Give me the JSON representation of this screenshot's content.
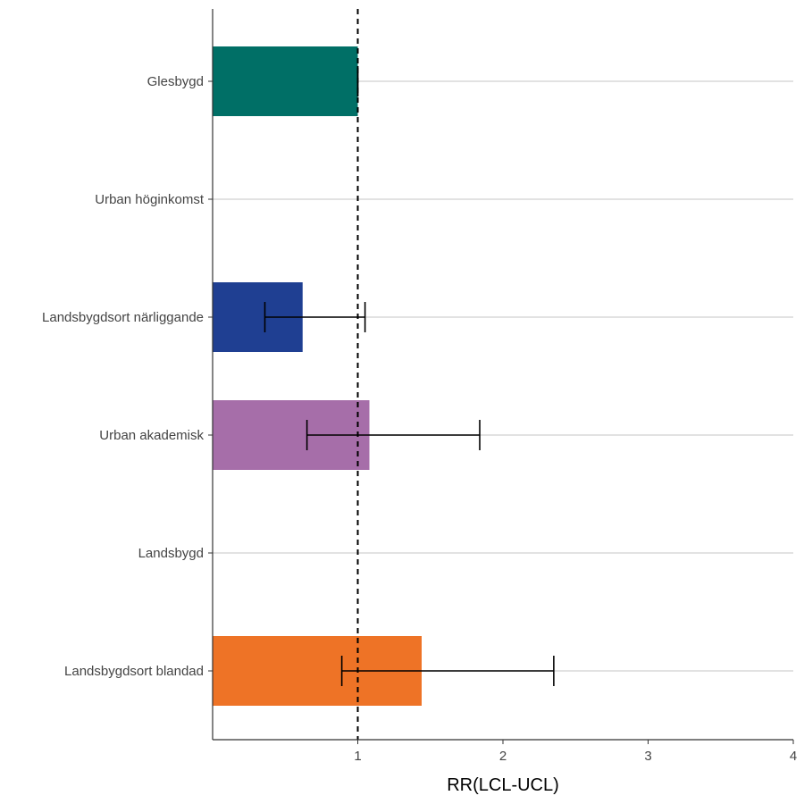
{
  "chart_data": {
    "type": "bar",
    "orientation": "horizontal",
    "title": "",
    "xlabel": "RR(LCL-UCL)",
    "ylabel": "",
    "xlim": [
      0,
      4
    ],
    "xticks": [
      "1",
      "2",
      "3",
      "4"
    ],
    "reference_line": {
      "x": 1,
      "style": "dashed"
    },
    "grid": "horizontal",
    "categories": [
      "Glesbygd",
      "Urban höginkomst",
      "Landsbygdsort närliggande",
      "Urban akademisk",
      "Landsbygd",
      "Landsbygdsort blandad"
    ],
    "values": [
      1.0,
      null,
      0.62,
      1.08,
      null,
      1.44
    ],
    "lcl": [
      1.0,
      null,
      0.36,
      0.65,
      null,
      0.89
    ],
    "ucl": [
      1.0,
      null,
      1.05,
      1.84,
      null,
      2.35
    ],
    "colors": [
      "#006f66",
      null,
      "#1f3f92",
      "#a66ea9",
      null,
      "#ee7326"
    ]
  }
}
